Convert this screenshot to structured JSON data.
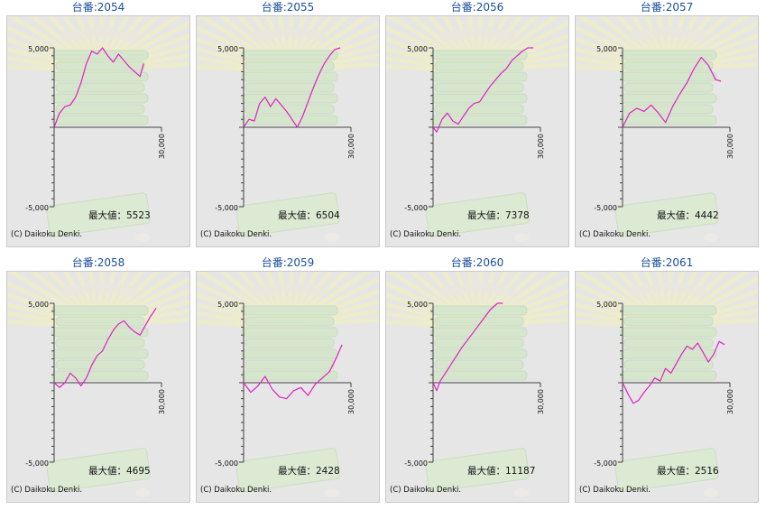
{
  "colors": {
    "title": "#1a4f9c",
    "line": "#e020c8",
    "axis": "#444444",
    "panel_bg": "#e6e6e6"
  },
  "common": {
    "ytick_top": "5,000",
    "ytick_bottom": "-5,000",
    "xtick_end": "30,000",
    "max_label": "最大値：",
    "copyright": "(C) Daikoku Denki."
  },
  "chart_data": [
    {
      "type": "line",
      "title": "台番:2054",
      "max_value": "5523",
      "ylim": [
        -5000,
        5000
      ],
      "xlim": [
        0,
        30000
      ],
      "x": [
        0,
        1500,
        3000,
        4500,
        6000,
        7500,
        9000,
        10500,
        12000,
        13500,
        15000,
        16500,
        18000,
        19500,
        21000,
        22500,
        24000,
        25000
      ],
      "y": [
        0,
        900,
        1300,
        1400,
        1900,
        2800,
        4000,
        4800,
        4600,
        5000,
        4500,
        4100,
        4600,
        4200,
        3800,
        3500,
        3200,
        4000
      ]
    },
    {
      "type": "line",
      "title": "台番:2055",
      "max_value": "6504",
      "ylim": [
        -5000,
        5000
      ],
      "xlim": [
        0,
        30000
      ],
      "x": [
        0,
        1500,
        3000,
        4500,
        6000,
        7500,
        9000,
        10500,
        12000,
        13500,
        15000,
        16500,
        18000,
        19500,
        21000,
        22500,
        24000,
        25500,
        27000
      ],
      "y": [
        0,
        500,
        400,
        1500,
        1900,
        1300,
        1800,
        1400,
        1000,
        500,
        0,
        700,
        1600,
        2500,
        3300,
        4000,
        4500,
        4900,
        5000
      ]
    },
    {
      "type": "line",
      "title": "台番:2056",
      "max_value": "7378",
      "ylim": [
        -5000,
        5000
      ],
      "xlim": [
        0,
        30000
      ],
      "x": [
        0,
        1000,
        2500,
        4000,
        5500,
        7000,
        8500,
        10000,
        11500,
        13000,
        14500,
        16000,
        17500,
        19000,
        20500,
        22000,
        23500,
        25000,
        26500,
        28000
      ],
      "y": [
        0,
        -300,
        500,
        900,
        400,
        200,
        700,
        1200,
        1500,
        1600,
        2100,
        2600,
        3000,
        3400,
        3700,
        4200,
        4500,
        4800,
        5000,
        5000
      ]
    },
    {
      "type": "line",
      "title": "台番:2057",
      "max_value": "4442",
      "ylim": [
        -5000,
        5000
      ],
      "xlim": [
        0,
        30000
      ],
      "x": [
        0,
        2000,
        4000,
        6000,
        8000,
        10000,
        12000,
        14000,
        16000,
        18000,
        20000,
        22000,
        24000,
        26000,
        27500
      ],
      "y": [
        0,
        900,
        1200,
        1000,
        1400,
        900,
        300,
        1300,
        2100,
        2800,
        3700,
        4400,
        3900,
        3000,
        2900
      ]
    },
    {
      "type": "line",
      "title": "台番:2058",
      "max_value": "4695",
      "ylim": [
        -5000,
        5000
      ],
      "xlim": [
        0,
        30000
      ],
      "x": [
        0,
        1500,
        3000,
        4500,
        6000,
        7500,
        9000,
        10500,
        12000,
        13500,
        15000,
        16500,
        18000,
        19500,
        21000,
        22500,
        24000,
        25500,
        27000,
        28500
      ],
      "y": [
        0,
        -300,
        0,
        600,
        300,
        -200,
        300,
        1100,
        1700,
        2000,
        2700,
        3300,
        3700,
        3900,
        3500,
        3200,
        3000,
        3600,
        4200,
        4700
      ]
    },
    {
      "type": "line",
      "title": "台番:2059",
      "max_value": "2428",
      "ylim": [
        -5000,
        5000
      ],
      "xlim": [
        0,
        30000
      ],
      "x": [
        0,
        2000,
        4000,
        6000,
        8000,
        10000,
        12000,
        14000,
        16000,
        18000,
        20000,
        22000,
        24000,
        26000,
        27500
      ],
      "y": [
        0,
        -600,
        -200,
        400,
        -400,
        -900,
        -1000,
        -500,
        -300,
        -800,
        -100,
        300,
        700,
        1600,
        2400
      ]
    },
    {
      "type": "line",
      "title": "台番:2060",
      "max_value": "11187",
      "ylim": [
        -5000,
        5000
      ],
      "xlim": [
        0,
        30000
      ],
      "x": [
        0,
        1000,
        2000,
        4000,
        6000,
        8000,
        10000,
        12000,
        14000,
        16000,
        18000,
        19500
      ],
      "y": [
        0,
        -500,
        100,
        800,
        1500,
        2200,
        2800,
        3400,
        4000,
        4600,
        5000,
        5000
      ]
    },
    {
      "type": "line",
      "title": "台番:2061",
      "max_value": "2516",
      "ylim": [
        -5000,
        5000
      ],
      "xlim": [
        0,
        30000
      ],
      "x": [
        0,
        1500,
        3000,
        4500,
        6000,
        7500,
        9000,
        10500,
        12000,
        13500,
        15000,
        16500,
        18000,
        19500,
        21000,
        22500,
        24000,
        25500,
        27000,
        28500
      ],
      "y": [
        0,
        -700,
        -1300,
        -1100,
        -600,
        -200,
        300,
        100,
        900,
        600,
        1200,
        1800,
        2300,
        2100,
        2500,
        1900,
        1300,
        1800,
        2600,
        2400
      ]
    }
  ]
}
